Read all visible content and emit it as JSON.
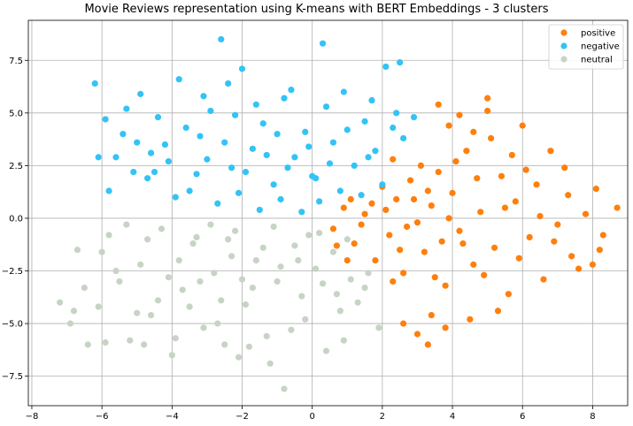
{
  "chart_data": {
    "type": "scatter",
    "title": "Movie Reviews representation using K-means with BERT Embeddings - 3 clusters",
    "xlabel": "",
    "ylabel": "",
    "xlim": [
      -8.1,
      9.0
    ],
    "ylim": [
      -8.9,
      9.4
    ],
    "x_ticks": [
      -8,
      -6,
      -4,
      -2,
      0,
      2,
      4,
      6,
      8
    ],
    "y_ticks": [
      -7.5,
      -5.0,
      -2.5,
      0.0,
      2.5,
      5.0,
      7.5
    ],
    "x_tick_labels": [
      "−8",
      "−6",
      "−4",
      "−2",
      "0",
      "2",
      "4",
      "6",
      "8"
    ],
    "y_tick_labels": [
      "−7.5",
      "−5.0",
      "−2.5",
      "0.0",
      "2.5",
      "5.0",
      "7.5"
    ],
    "grid": true,
    "legend_position": "top-right",
    "series": [
      {
        "name": "positive",
        "color": "#ff7f0e",
        "points": [
          [
            0.6,
            -0.5
          ],
          [
            0.9,
            0.5
          ],
          [
            1.2,
            -1.2
          ],
          [
            1.5,
            0.2
          ],
          [
            1.8,
            -2.0
          ],
          [
            2.0,
            1.5
          ],
          [
            2.2,
            -0.8
          ],
          [
            2.4,
            0.9
          ],
          [
            2.6,
            -2.6
          ],
          [
            2.8,
            1.8
          ],
          [
            3.0,
            -0.2
          ],
          [
            3.2,
            -1.6
          ],
          [
            3.4,
            0.6
          ],
          [
            3.6,
            2.2
          ],
          [
            3.8,
            -3.2
          ],
          [
            4.0,
            1.2
          ],
          [
            4.2,
            -0.6
          ],
          [
            4.4,
            3.2
          ],
          [
            4.6,
            -2.2
          ],
          [
            4.8,
            0.3
          ],
          [
            5.0,
            5.1
          ],
          [
            5.2,
            -1.4
          ],
          [
            5.4,
            2.0
          ],
          [
            5.6,
            -3.6
          ],
          [
            5.8,
            0.8
          ],
          [
            6.0,
            4.4
          ],
          [
            6.2,
            -0.9
          ],
          [
            6.4,
            1.6
          ],
          [
            6.6,
            -2.9
          ],
          [
            6.8,
            3.2
          ],
          [
            7.0,
            -0.3
          ],
          [
            7.2,
            2.4
          ],
          [
            7.4,
            -1.8
          ],
          [
            7.6,
            -2.4
          ],
          [
            7.8,
            0.2
          ],
          [
            8.0,
            -2.2
          ],
          [
            8.1,
            1.4
          ],
          [
            8.2,
            -1.5
          ],
          [
            8.3,
            -0.8
          ],
          [
            8.7,
            0.5
          ],
          [
            3.0,
            -5.5
          ],
          [
            3.4,
            -4.6
          ],
          [
            3.8,
            -5.2
          ],
          [
            4.5,
            -4.8
          ],
          [
            5.3,
            -4.4
          ],
          [
            2.6,
            -5.0
          ],
          [
            3.3,
            -6.0
          ],
          [
            5.0,
            5.7
          ],
          [
            2.1,
            0.4
          ],
          [
            2.5,
            -1.5
          ],
          [
            2.9,
            0.9
          ],
          [
            3.1,
            2.5
          ],
          [
            3.5,
            -2.8
          ],
          [
            3.9,
            0.0
          ],
          [
            4.3,
            -1.2
          ],
          [
            4.7,
            1.9
          ],
          [
            1.1,
            0.9
          ],
          [
            1.4,
            -0.3
          ],
          [
            1.7,
            0.7
          ],
          [
            2.3,
            -3.0
          ],
          [
            2.7,
            -0.4
          ],
          [
            3.3,
            1.3
          ],
          [
            3.7,
            -1.1
          ],
          [
            4.1,
            2.7
          ],
          [
            4.9,
            -2.7
          ],
          [
            5.5,
            0.5
          ],
          [
            5.9,
            -1.9
          ],
          [
            6.1,
            2.3
          ],
          [
            6.5,
            0.1
          ],
          [
            6.9,
            -1.1
          ],
          [
            7.3,
            1.1
          ],
          [
            5.1,
            3.8
          ],
          [
            4.6,
            4.1
          ],
          [
            3.9,
            4.4
          ],
          [
            3.6,
            5.4
          ],
          [
            4.2,
            4.9
          ],
          [
            5.7,
            3.0
          ],
          [
            2.3,
            2.8
          ],
          [
            1.0,
            -2.0
          ],
          [
            0.7,
            -1.3
          ]
        ]
      },
      {
        "name": "negative",
        "color": "#33c3f6",
        "points": [
          [
            -6.2,
            6.4
          ],
          [
            -5.9,
            4.7
          ],
          [
            -5.6,
            2.9
          ],
          [
            -5.3,
            5.2
          ],
          [
            -5.0,
            3.6
          ],
          [
            -4.7,
            1.9
          ],
          [
            -4.4,
            4.8
          ],
          [
            -4.1,
            2.7
          ],
          [
            -3.8,
            6.6
          ],
          [
            -3.5,
            1.3
          ],
          [
            -3.2,
            3.9
          ],
          [
            -2.9,
            5.1
          ],
          [
            -2.6,
            8.5
          ],
          [
            -2.3,
            2.4
          ],
          [
            -2.0,
            7.1
          ],
          [
            -1.7,
            3.3
          ],
          [
            -1.4,
            4.5
          ],
          [
            -1.1,
            1.6
          ],
          [
            -0.8,
            5.7
          ],
          [
            -0.5,
            2.9
          ],
          [
            -0.2,
            4.1
          ],
          [
            0.1,
            1.9
          ],
          [
            0.3,
            8.3
          ],
          [
            0.6,
            3.6
          ],
          [
            0.9,
            6.0
          ],
          [
            1.2,
            2.5
          ],
          [
            1.5,
            4.6
          ],
          [
            1.8,
            3.2
          ],
          [
            2.1,
            7.2
          ],
          [
            2.4,
            5.0
          ],
          [
            2.6,
            3.8
          ],
          [
            2.9,
            4.8
          ],
          [
            -5.8,
            1.3
          ],
          [
            -5.1,
            2.2
          ],
          [
            -4.6,
            3.1
          ],
          [
            -3.9,
            1.0
          ],
          [
            -3.3,
            2.1
          ],
          [
            -2.7,
            0.7
          ],
          [
            -2.1,
            1.2
          ],
          [
            -1.5,
            0.4
          ],
          [
            -0.9,
            0.9
          ],
          [
            -0.3,
            0.3
          ],
          [
            0.2,
            0.8
          ],
          [
            0.8,
            1.3
          ],
          [
            1.4,
            1.1
          ],
          [
            -4.9,
            5.9
          ],
          [
            -2.4,
            6.4
          ],
          [
            2.5,
            7.4
          ],
          [
            -6.1,
            2.9
          ],
          [
            -5.4,
            4.0
          ],
          [
            -4.2,
            3.5
          ],
          [
            -3.6,
            4.3
          ],
          [
            -3.0,
            2.8
          ],
          [
            -2.5,
            3.6
          ],
          [
            -1.9,
            2.2
          ],
          [
            -1.3,
            3.0
          ],
          [
            -0.7,
            2.4
          ],
          [
            -0.1,
            3.4
          ],
          [
            0.5,
            2.6
          ],
          [
            1.0,
            4.2
          ],
          [
            1.6,
            2.9
          ],
          [
            2.0,
            1.6
          ],
          [
            2.3,
            4.3
          ],
          [
            -3.1,
            5.8
          ],
          [
            -1.6,
            5.4
          ],
          [
            -0.6,
            6.1
          ],
          [
            0.4,
            5.3
          ],
          [
            1.7,
            5.6
          ],
          [
            -4.5,
            2.2
          ],
          [
            -2.2,
            4.9
          ],
          [
            -1.0,
            4.0
          ],
          [
            0.0,
            2.0
          ]
        ]
      },
      {
        "name": "neutral",
        "color": "#c7d4c5",
        "points": [
          [
            -7.2,
            -4.0
          ],
          [
            -6.9,
            -5.0
          ],
          [
            -6.7,
            -1.5
          ],
          [
            -6.4,
            -6.0
          ],
          [
            -6.1,
            -4.2
          ],
          [
            -5.8,
            -0.8
          ],
          [
            -5.5,
            -3.0
          ],
          [
            -5.2,
            -5.8
          ],
          [
            -4.9,
            -2.2
          ],
          [
            -4.6,
            -4.6
          ],
          [
            -4.3,
            -0.5
          ],
          [
            -4.0,
            -6.5
          ],
          [
            -3.7,
            -3.4
          ],
          [
            -3.4,
            -1.2
          ],
          [
            -3.1,
            -5.2
          ],
          [
            -2.8,
            -2.6
          ],
          [
            -2.5,
            -6.0
          ],
          [
            -2.2,
            -0.6
          ],
          [
            -1.9,
            -4.1
          ],
          [
            -1.6,
            -2.0
          ],
          [
            -1.3,
            -5.6
          ],
          [
            -1.0,
            -3.0
          ],
          [
            -0.8,
            -8.1
          ],
          [
            -0.5,
            -1.3
          ],
          [
            -0.2,
            -4.8
          ],
          [
            0.1,
            -2.4
          ],
          [
            0.4,
            -6.3
          ],
          [
            0.7,
            -3.6
          ],
          [
            1.0,
            -1.0
          ],
          [
            1.3,
            -4.0
          ],
          [
            1.6,
            -2.6
          ],
          [
            1.9,
            -5.2
          ],
          [
            -6.0,
            -1.6
          ],
          [
            -5.3,
            -0.3
          ],
          [
            -4.7,
            -1.0
          ],
          [
            -4.1,
            -2.8
          ],
          [
            -3.5,
            -4.2
          ],
          [
            -2.9,
            -0.3
          ],
          [
            -2.3,
            -1.8
          ],
          [
            -1.7,
            -3.3
          ],
          [
            -1.1,
            -0.4
          ],
          [
            -0.4,
            -2.0
          ],
          [
            0.2,
            -0.7
          ],
          [
            0.6,
            -1.6
          ],
          [
            1.1,
            -2.9
          ],
          [
            -6.5,
            -3.3
          ],
          [
            -5.6,
            -2.5
          ],
          [
            -4.4,
            -3.9
          ],
          [
            -3.8,
            -2.0
          ],
          [
            -3.2,
            -3.0
          ],
          [
            -2.6,
            -3.9
          ],
          [
            -2.0,
            -2.9
          ],
          [
            -1.4,
            -1.4
          ],
          [
            -0.9,
            -2.3
          ],
          [
            -0.3,
            -3.7
          ],
          [
            0.3,
            -3.1
          ],
          [
            0.8,
            -4.4
          ],
          [
            1.5,
            -3.3
          ],
          [
            -5.0,
            -4.5
          ],
          [
            -3.9,
            -5.7
          ],
          [
            -2.7,
            -5.0
          ],
          [
            -1.8,
            -6.1
          ],
          [
            -0.6,
            -5.3
          ],
          [
            0.9,
            -5.8
          ],
          [
            -6.8,
            -4.4
          ],
          [
            -5.9,
            -5.9
          ],
          [
            -4.8,
            -6.0
          ],
          [
            -2.1,
            -6.6
          ],
          [
            -1.2,
            -6.9
          ],
          [
            -3.3,
            -0.9
          ],
          [
            -2.4,
            -1.0
          ],
          [
            -0.1,
            -0.8
          ]
        ]
      }
    ]
  }
}
